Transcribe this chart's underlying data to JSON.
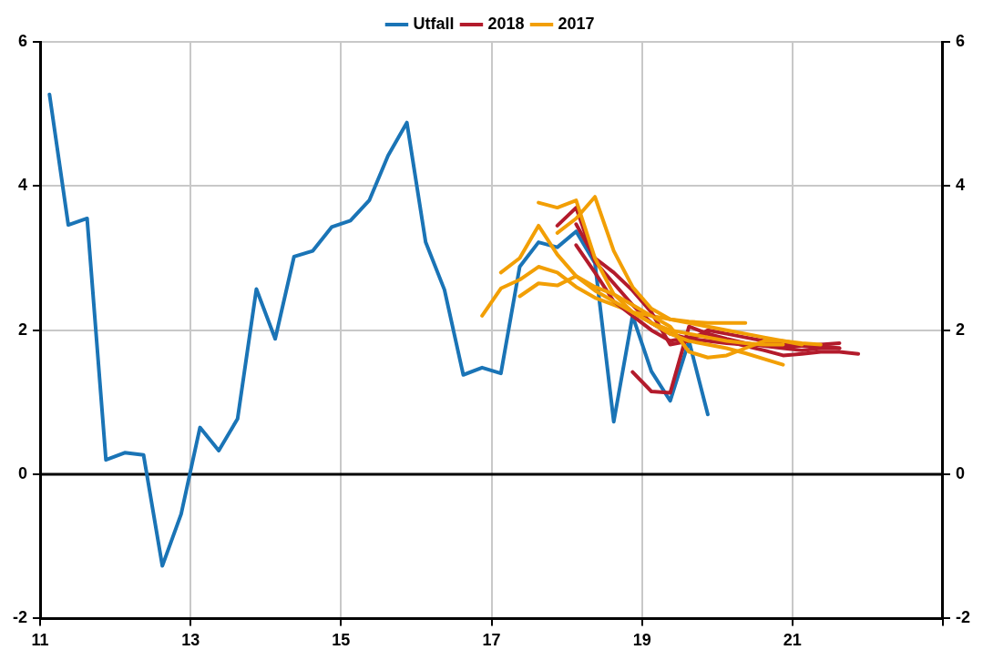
{
  "chart_data": {
    "type": "line",
    "xlim": [
      11,
      23
    ],
    "xticks": [
      11,
      13,
      15,
      17,
      19,
      21,
      {
        "value": 23,
        "label": null
      }
    ],
    "ylim": [
      -2,
      6
    ],
    "yticks": [
      -2,
      0,
      2,
      4,
      6
    ],
    "y2lim": [
      -2,
      6
    ],
    "y2ticks": [
      -2,
      0,
      2,
      4,
      6
    ],
    "grid": true,
    "legend": "top",
    "line_style": "solid",
    "marker": "none",
    "ref_lines": [
      {
        "axis": "y",
        "value": 0,
        "color": "#000000"
      }
    ],
    "series": [
      {
        "name": "Utfall",
        "color": "#1a74b6",
        "x": [
          11.125,
          11.375,
          11.625,
          11.875,
          12.125,
          12.375,
          12.625,
          12.875,
          13.125,
          13.375,
          13.625,
          13.875,
          14.125,
          14.375,
          14.625,
          14.875,
          15.125,
          15.375,
          15.625,
          15.875,
          16.125,
          16.375,
          16.625,
          16.875,
          17.125,
          17.375,
          17.625,
          17.875,
          18.125,
          18.375,
          18.625,
          18.875,
          19.125,
          19.375,
          19.625,
          19.875
        ],
        "values": [
          5.27,
          3.46,
          3.55,
          0.2,
          0.3,
          0.27,
          -1.27,
          -0.55,
          0.65,
          0.33,
          0.77,
          2.57,
          1.88,
          3.02,
          3.1,
          3.43,
          3.52,
          3.8,
          4.42,
          4.88,
          3.22,
          2.56,
          1.38,
          1.48,
          1.4,
          2.88,
          3.22,
          3.15,
          3.37,
          2.93,
          0.73,
          2.2,
          1.43,
          1.02,
          1.85,
          0.83
        ]
      },
      {
        "name": "2018",
        "color": "#b31b2c",
        "x": [
          17.875,
          18.125,
          18.375,
          18.625,
          18.875,
          19.125,
          19.375,
          19.625,
          19.875,
          20.125,
          20.375,
          20.625,
          20.875,
          21.125,
          21.375,
          21.625
        ],
        "values": [
          3.45,
          3.7,
          2.95,
          2.65,
          2.35,
          2.1,
          1.95,
          1.88,
          1.85,
          1.82,
          1.8,
          1.8,
          1.78,
          1.78,
          1.78,
          1.75
        ]
      },
      {
        "name": "2017",
        "color": "#f29f05",
        "x": [
          16.875,
          17.125,
          17.375,
          17.625,
          17.875,
          18.125,
          18.375,
          18.625,
          18.875,
          19.125,
          19.375,
          19.625,
          19.875,
          20.125,
          20.375
        ],
        "values": [
          2.2,
          2.58,
          2.7,
          2.88,
          2.8,
          2.6,
          2.45,
          2.35,
          2.25,
          2.2,
          2.15,
          2.12,
          2.1,
          2.1,
          2.1
        ]
      },
      {
        "color": "#f29f05",
        "x": [
          17.125,
          17.375,
          17.625,
          17.875,
          18.125,
          18.375,
          18.625,
          18.875,
          19.125,
          19.375,
          19.625,
          19.875,
          20.125,
          20.375,
          20.625,
          20.875
        ],
        "values": [
          2.8,
          3.0,
          3.45,
          3.05,
          2.75,
          2.55,
          2.4,
          2.25,
          2.1,
          1.95,
          1.85,
          1.8,
          1.75,
          1.68,
          1.6,
          1.52
        ]
      },
      {
        "color": "#f29f05",
        "x": [
          17.375,
          17.625,
          17.875,
          18.125,
          18.375,
          18.625,
          18.875,
          19.125,
          19.375,
          19.625,
          19.875,
          20.125,
          20.375,
          20.625,
          20.875,
          21.125
        ],
        "values": [
          2.47,
          2.65,
          2.62,
          2.75,
          2.6,
          2.5,
          2.35,
          2.2,
          2.05,
          1.7,
          1.62,
          1.65,
          1.75,
          1.85,
          1.85,
          1.8
        ]
      },
      {
        "color": "#f29f05",
        "x": [
          17.625,
          17.875,
          18.125,
          18.375,
          18.625,
          18.875,
          19.125,
          19.375,
          19.625,
          19.875,
          20.125,
          20.375,
          20.625,
          20.875
        ],
        "values": [
          3.77,
          3.7,
          3.8,
          3.0,
          2.5,
          2.25,
          2.1,
          2.0,
          1.95,
          1.9,
          1.85,
          1.82,
          1.8,
          1.8
        ]
      },
      {
        "color": "#f29f05",
        "x": [
          17.875,
          18.125,
          18.375,
          18.625,
          18.875,
          19.125,
          19.375,
          19.625,
          19.875,
          20.125,
          20.375,
          20.625,
          20.875,
          21.125,
          21.375
        ],
        "values": [
          3.35,
          3.55,
          3.85,
          3.1,
          2.6,
          2.3,
          2.15,
          2.1,
          2.05,
          2.0,
          1.95,
          1.9,
          1.85,
          1.82,
          1.8
        ]
      },
      {
        "color": "#b31b2c",
        "x": [
          18.125,
          18.375,
          18.625,
          18.875,
          19.125,
          19.375,
          19.625,
          19.875,
          20.125,
          20.375,
          20.625,
          20.875,
          21.125,
          21.375,
          21.625
        ],
        "values": [
          3.47,
          3.0,
          2.8,
          2.55,
          2.25,
          1.8,
          1.85,
          2.0,
          1.95,
          1.9,
          1.85,
          1.8,
          1.78,
          1.8,
          1.82
        ]
      },
      {
        "color": "#b31b2c",
        "x": [
          18.875,
          19.125,
          19.375,
          19.625,
          19.875,
          20.125,
          20.375,
          20.625,
          20.875,
          21.125,
          21.375,
          21.625,
          21.875
        ],
        "values": [
          1.42,
          1.15,
          1.13,
          2.05,
          1.95,
          1.85,
          1.78,
          1.72,
          1.65,
          1.67,
          1.7,
          1.7,
          1.67
        ]
      },
      {
        "color": "#b31b2c",
        "x": [
          18.125,
          18.375,
          18.625,
          18.875,
          19.125,
          19.375,
          19.625,
          19.875,
          20.125,
          20.375,
          20.625,
          20.875,
          21.125,
          21.375,
          21.625
        ],
        "values": [
          3.18,
          2.8,
          2.4,
          2.2,
          2.0,
          1.85,
          1.9,
          1.95,
          1.88,
          1.82,
          1.78,
          1.75,
          1.72,
          1.75,
          1.75
        ]
      }
    ]
  }
}
